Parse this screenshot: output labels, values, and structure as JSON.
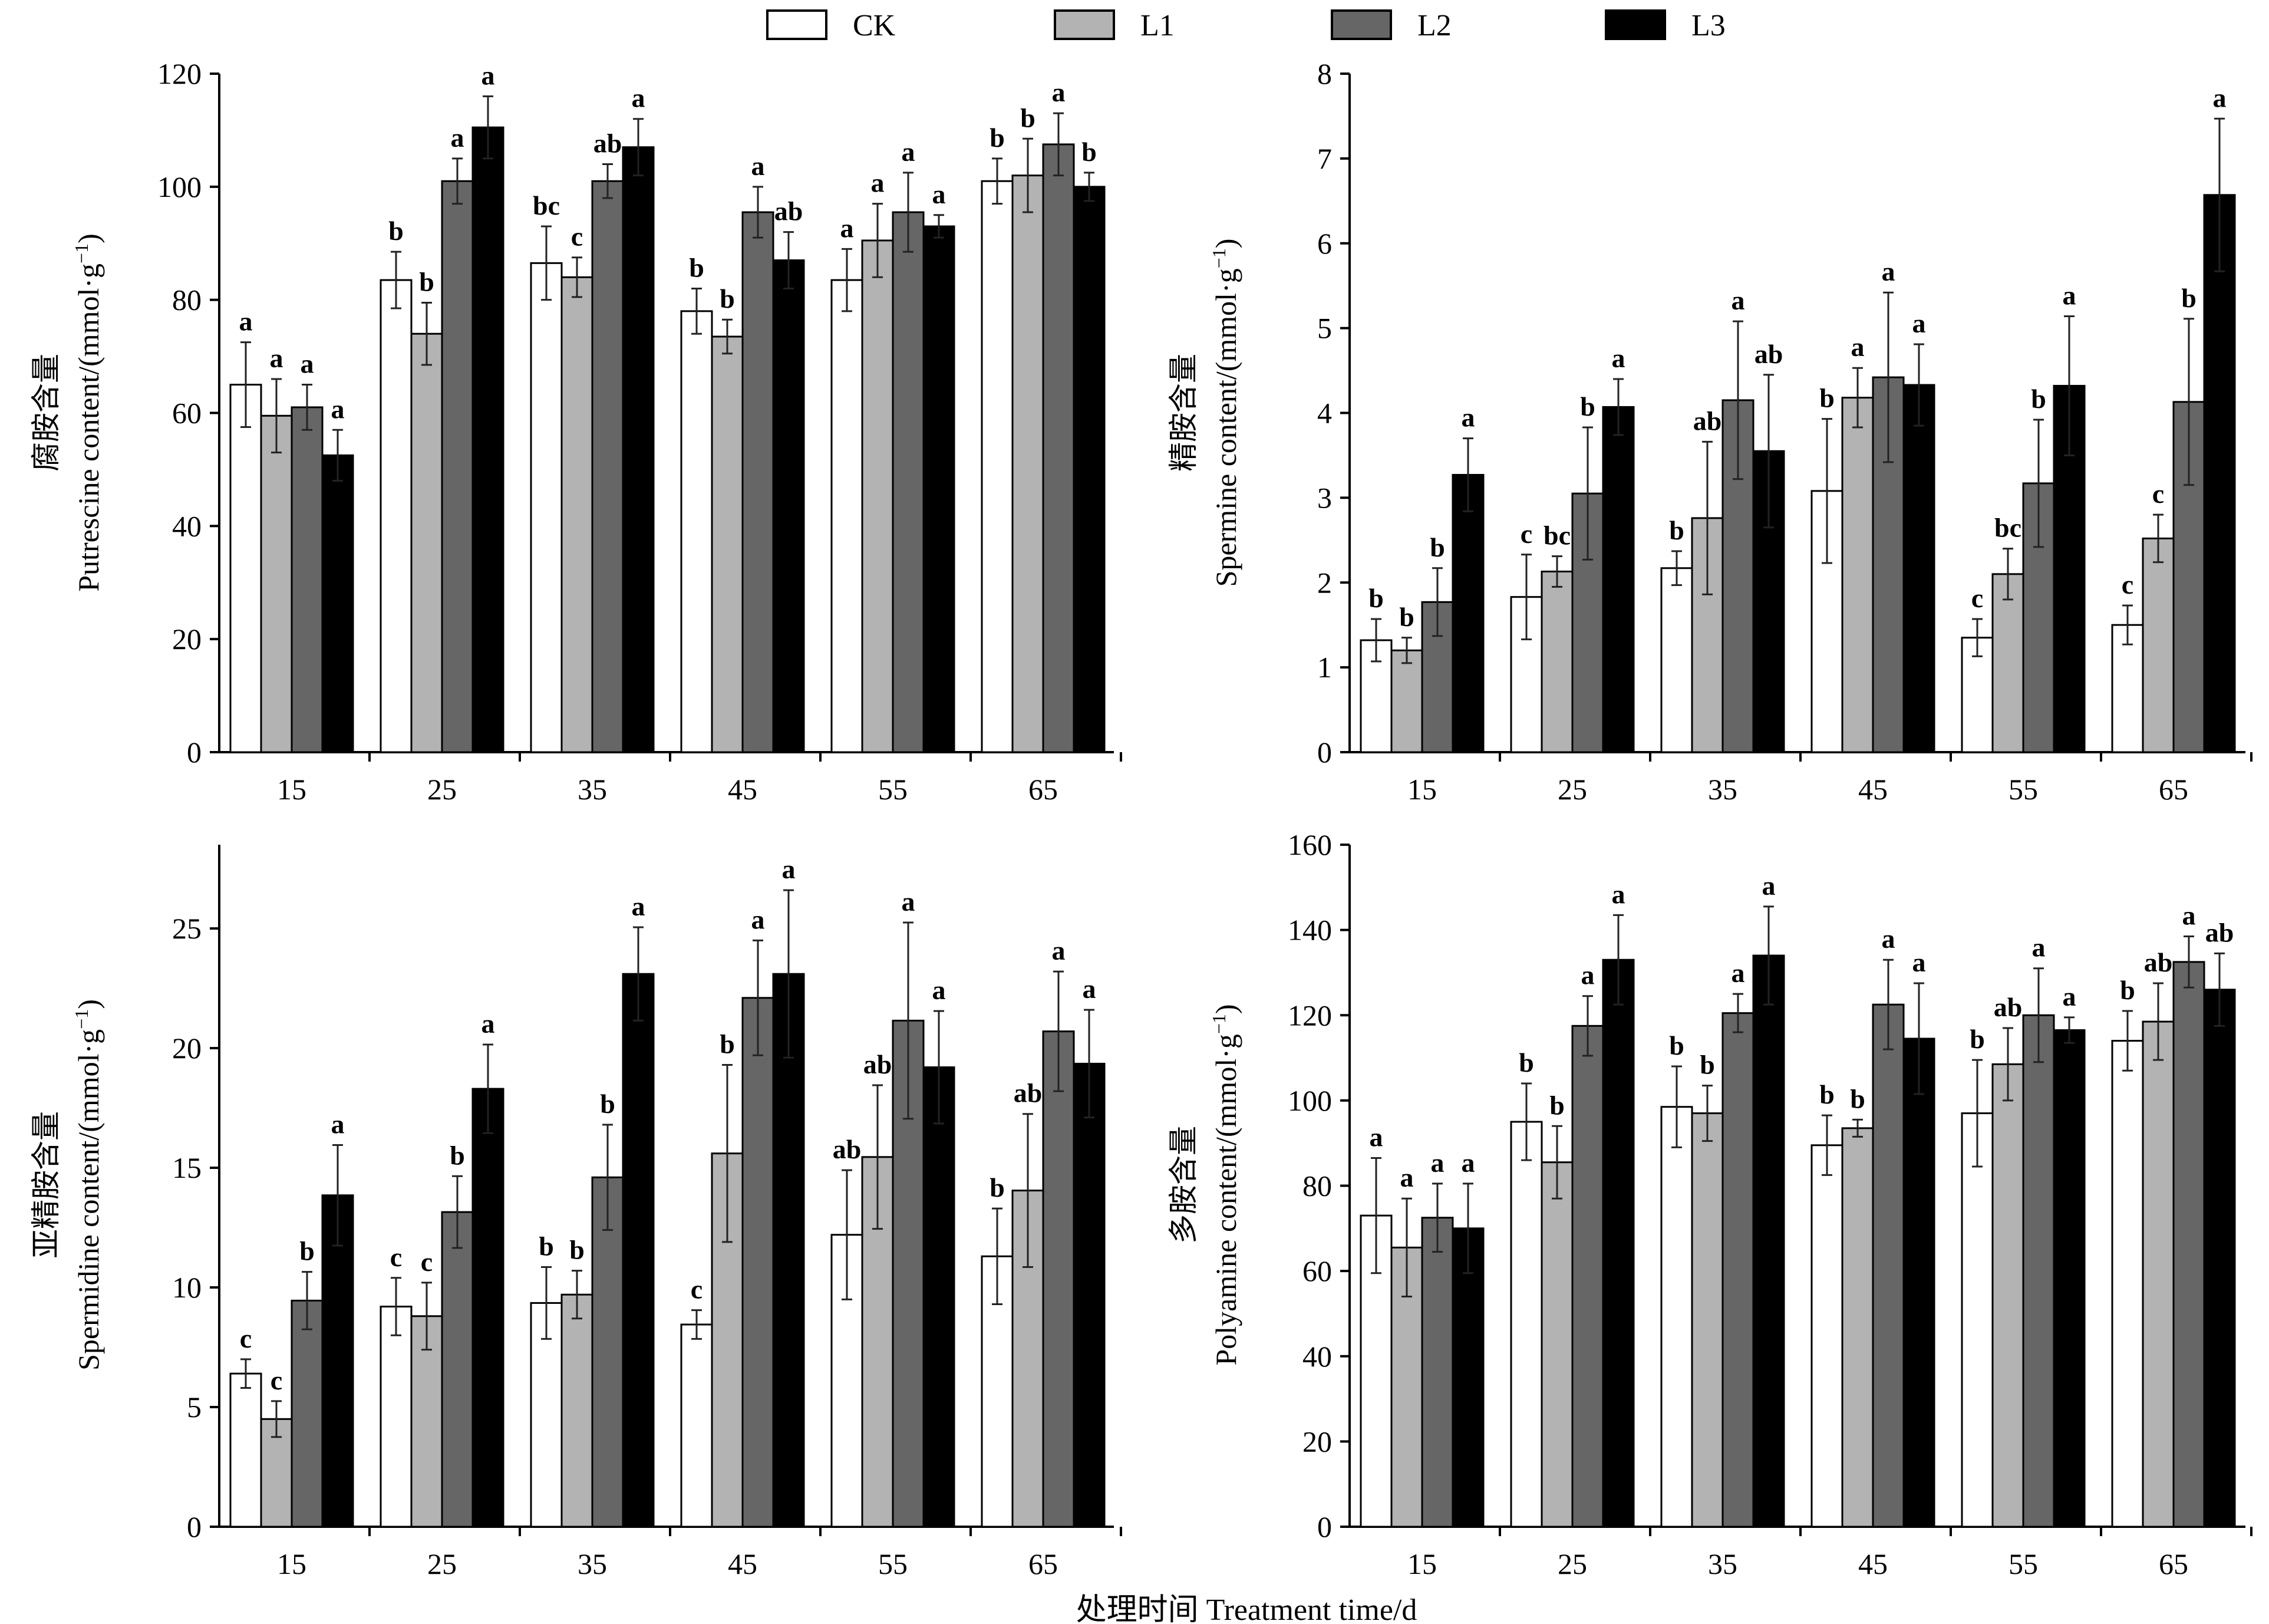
{
  "legend": [
    {
      "name": "CK",
      "color": "#ffffff"
    },
    {
      "name": "L1",
      "color": "#b3b3b3"
    },
    {
      "name": "L2",
      "color": "#666666"
    },
    {
      "name": "L3",
      "color": "#000000"
    }
  ],
  "x_title": "处理时间 Treatment time/d",
  "chart_data": [
    {
      "type": "bar",
      "ylabel": "腐胺含量 Putrescine content/(mmol·g⁻¹)",
      "ylabel_cn": "腐胺含量",
      "ylabel_en": "Putrescine content/(mmol·g",
      "categories": [
        "15",
        "25",
        "35",
        "45",
        "55",
        "65"
      ],
      "ylim": [
        0,
        120
      ],
      "yticks": [
        "0",
        "20",
        "40",
        "60",
        "80",
        "100",
        "120"
      ],
      "series": [
        {
          "name": "CK",
          "values": [
            65,
            83.5,
            86.5,
            78,
            83.5,
            101
          ],
          "errors": [
            7.5,
            5,
            6.5,
            4,
            5.5,
            4
          ],
          "letters": [
            "a",
            "b",
            "bc",
            "b",
            "a",
            "b"
          ]
        },
        {
          "name": "L1",
          "values": [
            59.5,
            74,
            84,
            73.5,
            90.5,
            102
          ],
          "errors": [
            6.5,
            5.5,
            3.5,
            3,
            6.5,
            6.5
          ],
          "letters": [
            "a",
            "b",
            "c",
            "b",
            "a",
            "b"
          ]
        },
        {
          "name": "L2",
          "values": [
            61,
            101,
            101,
            95.5,
            95.5,
            107.5
          ],
          "errors": [
            4,
            4,
            3,
            4.5,
            7,
            5.5
          ],
          "letters": [
            "a",
            "a",
            "ab",
            "a",
            "a",
            "a"
          ]
        },
        {
          "name": "L3",
          "values": [
            52.5,
            110.5,
            107,
            87,
            93,
            100
          ],
          "errors": [
            4.5,
            5.5,
            5,
            5,
            2,
            2.5
          ],
          "letters": [
            "a",
            "a",
            "a",
            "ab",
            "a",
            "b"
          ]
        }
      ]
    },
    {
      "type": "bar",
      "ylabel": "精胺含量 Spermine content/(mmol·g⁻¹)",
      "ylabel_cn": "精胺含量",
      "ylabel_en": "Spermine content/(mmol·g",
      "categories": [
        "15",
        "25",
        "35",
        "45",
        "55",
        "65"
      ],
      "ylim": [
        0,
        8
      ],
      "yticks": [
        "0",
        "1",
        "2",
        "3",
        "4",
        "5",
        "6",
        "7",
        "8"
      ],
      "series": [
        {
          "name": "CK",
          "values": [
            1.32,
            1.83,
            2.17,
            3.08,
            1.35,
            1.5
          ],
          "errors": [
            0.25,
            0.5,
            0.2,
            0.85,
            0.22,
            0.23
          ],
          "letters": [
            "b",
            "c",
            "b",
            "b",
            "c",
            "c"
          ]
        },
        {
          "name": "L1",
          "values": [
            1.2,
            2.13,
            2.76,
            4.18,
            2.1,
            2.52
          ],
          "errors": [
            0.15,
            0.18,
            0.9,
            0.35,
            0.3,
            0.28
          ],
          "letters": [
            "b",
            "bc",
            "ab",
            "a",
            "bc",
            "c"
          ]
        },
        {
          "name": "L2",
          "values": [
            1.77,
            3.05,
            4.15,
            4.42,
            3.17,
            4.13
          ],
          "errors": [
            0.4,
            0.78,
            0.93,
            1.0,
            0.75,
            0.98
          ],
          "letters": [
            "b",
            "b",
            "a",
            "a",
            "b",
            "b"
          ]
        },
        {
          "name": "L3",
          "values": [
            3.27,
            4.07,
            3.55,
            4.33,
            4.32,
            6.57
          ],
          "errors": [
            0.43,
            0.33,
            0.9,
            0.48,
            0.82,
            0.9
          ],
          "letters": [
            "a",
            "a",
            "ab",
            "a",
            "a",
            "a"
          ]
        }
      ]
    },
    {
      "type": "bar",
      "ylabel": "亚精胺含量 Spermidine content/(mmol·g⁻¹)",
      "ylabel_cn": "亚精胺含量",
      "ylabel_en": "Spermidine content/(mmol·g",
      "categories": [
        "15",
        "25",
        "35",
        "45",
        "55",
        "65"
      ],
      "ylim": [
        0,
        28.5
      ],
      "yticks": [
        "0",
        "5",
        "10",
        "15",
        "20",
        "25"
      ],
      "series": [
        {
          "name": "CK",
          "values": [
            6.4,
            9.2,
            9.35,
            8.45,
            12.2,
            11.3
          ],
          "errors": [
            0.6,
            1.2,
            1.5,
            0.6,
            2.7,
            2.0
          ],
          "letters": [
            "c",
            "c",
            "b",
            "c",
            "ab",
            "b"
          ]
        },
        {
          "name": "L1",
          "values": [
            4.5,
            8.8,
            9.7,
            15.6,
            15.45,
            14.05
          ],
          "errors": [
            0.75,
            1.4,
            1.0,
            3.7,
            3.0,
            3.2
          ],
          "letters": [
            "c",
            "c",
            "b",
            "b",
            "ab",
            "ab"
          ]
        },
        {
          "name": "L2",
          "values": [
            9.45,
            13.15,
            14.6,
            22.1,
            21.15,
            20.7
          ],
          "errors": [
            1.2,
            1.5,
            2.2,
            2.4,
            4.1,
            2.5
          ],
          "letters": [
            "b",
            "b",
            "b",
            "a",
            "a",
            "a"
          ]
        },
        {
          "name": "L3",
          "values": [
            13.85,
            18.3,
            23.1,
            23.1,
            19.2,
            19.35
          ],
          "errors": [
            2.1,
            1.85,
            1.95,
            3.5,
            2.35,
            2.25
          ],
          "letters": [
            "a",
            "a",
            "a",
            "a",
            "a",
            "a"
          ]
        }
      ]
    },
    {
      "type": "bar",
      "ylabel": "多胺含量 Polyamine content/(mmol·g⁻¹)",
      "ylabel_cn": "多胺含量",
      "ylabel_en": "Polyamine content/(mmol·g",
      "categories": [
        "15",
        "25",
        "35",
        "45",
        "55",
        "65"
      ],
      "ylim": [
        0,
        160
      ],
      "yticks": [
        "0",
        "20",
        "40",
        "60",
        "80",
        "100",
        "120",
        "140",
        "160"
      ],
      "series": [
        {
          "name": "CK",
          "values": [
            73,
            95,
            98.5,
            89.5,
            97,
            114
          ],
          "errors": [
            13.5,
            9,
            9.5,
            7,
            12.5,
            7
          ],
          "letters": [
            "a",
            "b",
            "b",
            "b",
            "b",
            "b"
          ]
        },
        {
          "name": "L1",
          "values": [
            65.5,
            85.5,
            97,
            93.5,
            108.5,
            118.5
          ],
          "errors": [
            11.5,
            8.5,
            6.5,
            2,
            8.5,
            9
          ],
          "letters": [
            "a",
            "b",
            "b",
            "b",
            "ab",
            "ab"
          ]
        },
        {
          "name": "L2",
          "values": [
            72.5,
            117.5,
            120.5,
            122.5,
            120,
            132.5
          ],
          "errors": [
            8,
            7,
            4.5,
            10.5,
            11,
            6
          ],
          "letters": [
            "a",
            "a",
            "a",
            "a",
            "a",
            "a"
          ]
        },
        {
          "name": "L3",
          "values": [
            70,
            133,
            134,
            114.5,
            116.5,
            126
          ],
          "errors": [
            10.5,
            10.5,
            11.5,
            13,
            3,
            8.5
          ],
          "letters": [
            "a",
            "a",
            "a",
            "a",
            "a",
            "ab"
          ]
        }
      ]
    }
  ]
}
